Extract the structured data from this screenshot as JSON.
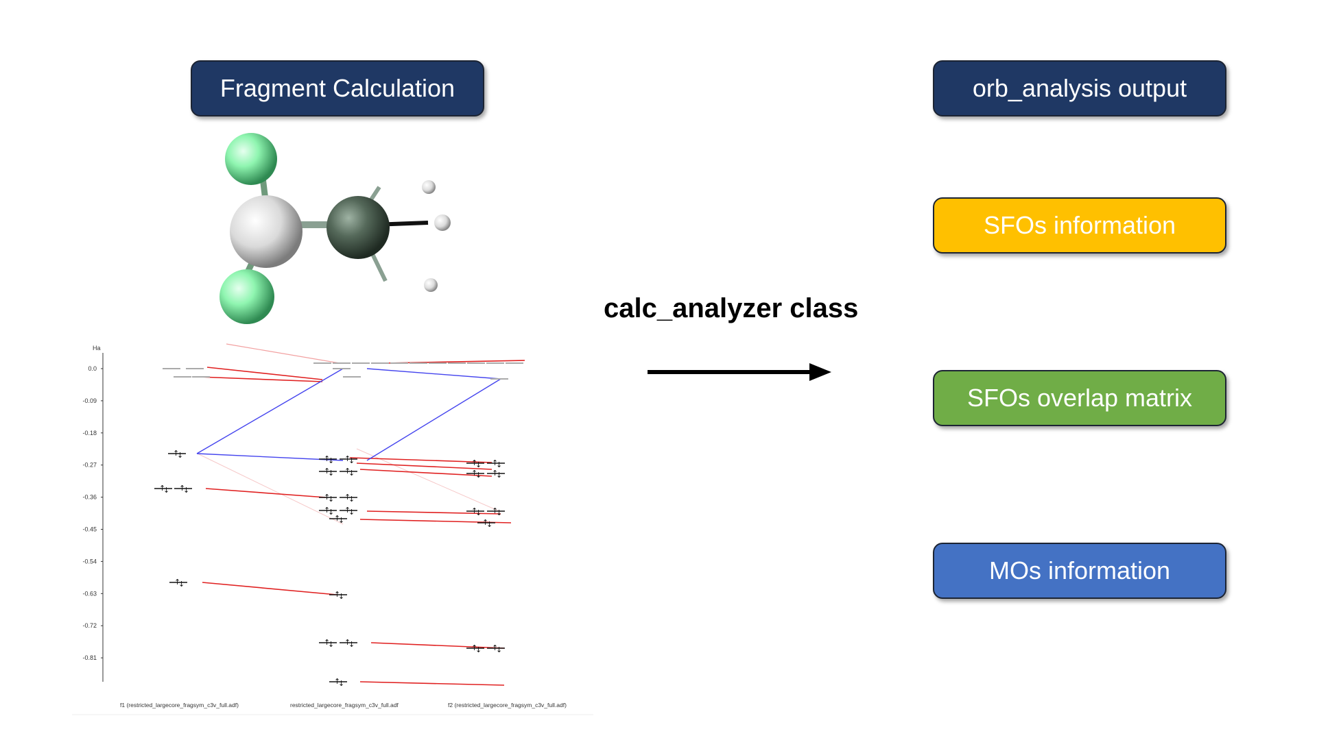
{
  "boxes": {
    "fragment": "Fragment Calculation",
    "orb_analysis": "orb_analysis output",
    "sfos_info": "SFOs information",
    "sfos_overlap": "SFOs overlap matrix",
    "mos_info": "MOs information"
  },
  "colors": {
    "navy": "#1f3864",
    "gold": "#ffc000",
    "green": "#70ad47",
    "blue": "#4472c4"
  },
  "calc_label": "calc_analyzer class",
  "energy_diagram": {
    "unit": "Ha",
    "ticks": [
      "0.0",
      "-0.09",
      "-0.18",
      "-0.27",
      "-0.36",
      "-0.45",
      "-0.54",
      "-0.63",
      "-0.72",
      "-0.81"
    ],
    "fragments": [
      "f1 (restricted_largecore_fragsym_c3v_full.adf)",
      "restricted_largecore_fragsym_c3v_full.adf",
      "f2 (restricted_largecore_fragsym_c3v_full.adf)"
    ]
  }
}
